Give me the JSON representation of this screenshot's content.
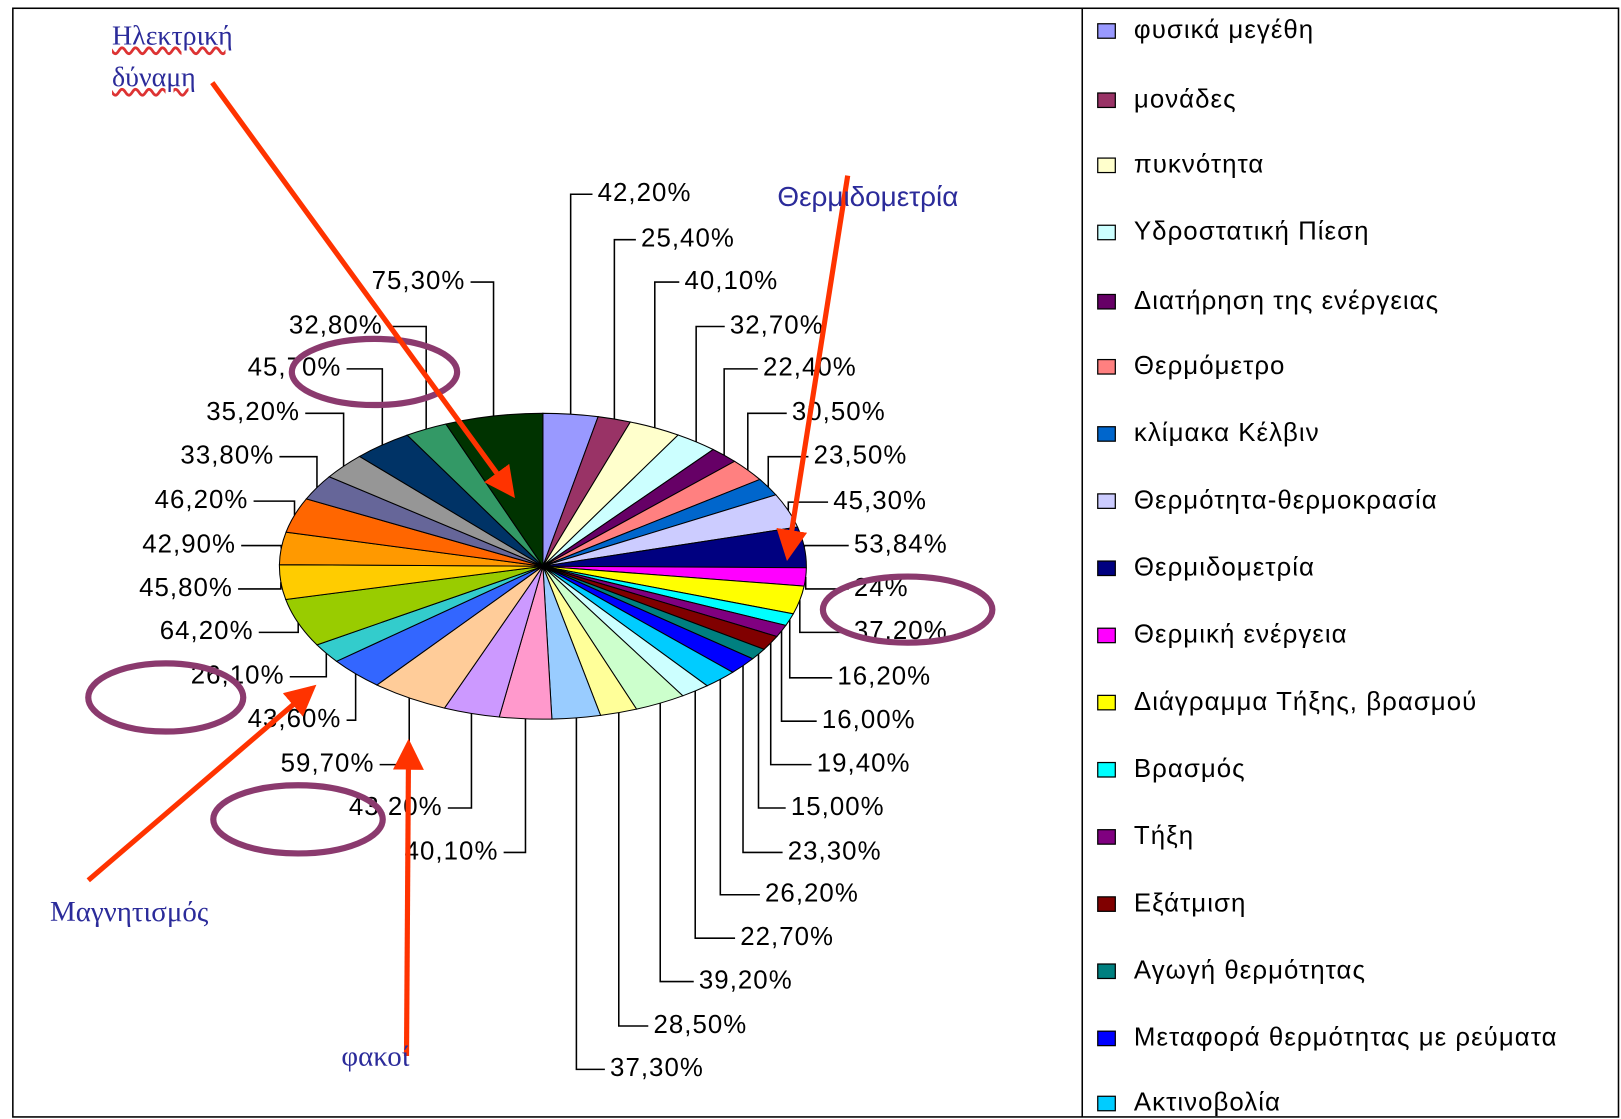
{
  "chart_data": {
    "type": "pie",
    "categories": [
      "φυσικά μεγέθη",
      "μονάδες",
      "πυκνότητα",
      "Υδροστατική Πίεση",
      "Διατήρηση της ενέργειας",
      "Θερμόμετρο",
      "κλίμακα Κέλβιν",
      "Θερμότητα-θερμοκρασία",
      "Θερμιδομετρία",
      "Θερμική ενέργεια",
      "Διάγραμμα Τήξης, βρασμού",
      "Βρασμός",
      "Τήξη",
      "Εξάτμιση",
      "Αγωγή θερμότητας",
      "Μεταφορά θερμότητας με ρεύματα",
      "Ακτινοβολία",
      null,
      null,
      null,
      null,
      null,
      null,
      null,
      null,
      null,
      null,
      null,
      null,
      null,
      null,
      null,
      null,
      null,
      null
    ],
    "values": [
      42.2,
      25.4,
      40.1,
      32.7,
      22.4,
      30.5,
      23.5,
      45.3,
      53.84,
      24,
      37.2,
      16.2,
      16.0,
      19.4,
      15.0,
      23.3,
      26.2,
      22.7,
      39.2,
      28.5,
      37.3,
      40.1,
      43.2,
      59.7,
      43.6,
      26.1,
      64.2,
      45.8,
      42.9,
      46.2,
      33.8,
      35.2,
      45.7,
      32.8,
      75.3
    ],
    "value_labels": [
      "42,20%",
      "25,40%",
      "40,10%",
      "32,70%",
      "22,40%",
      "30,50%",
      "23,50%",
      "45,30%",
      "53,84%",
      "24%",
      "37,20%",
      "16,20%",
      "16,00%",
      "19,40%",
      "15,00%",
      "23,30%",
      "26,20%",
      "22,70%",
      "39,20%",
      "28,50%",
      "37,30%",
      "40,10%",
      "43,20%",
      "59,70%",
      "43,60%",
      "26,10%",
      "64,20%",
      "45,80%",
      "42,90%",
      "46,20%",
      "33,80%",
      "35,20%",
      "45,70%",
      "32,80%",
      "75,30%"
    ],
    "colors": [
      "#9999ff",
      "#993366",
      "#ffffcc",
      "#ccffff",
      "#660066",
      "#ff8080",
      "#0066cc",
      "#ccccff",
      "#000080",
      "#ff00ff",
      "#ffff00",
      "#00ffff",
      "#800080",
      "#800000",
      "#008080",
      "#0000ff",
      "#00ccff",
      "#ccffff",
      "#ccffcc",
      "#ffff99",
      "#99ccff",
      "#ff99cc",
      "#cc99ff",
      "#ffcc99",
      "#3366ff",
      "#33cccc",
      "#99cc00",
      "#ffcc00",
      "#ff9900",
      "#ff6600",
      "#666699",
      "#969696",
      "#003366",
      "#339966",
      "#003300"
    ],
    "annotations": [
      "Ηλεκτρική δύναμη",
      "Θερμιδομετρία",
      "Μαγνητισμός",
      "φακοί"
    ]
  }
}
